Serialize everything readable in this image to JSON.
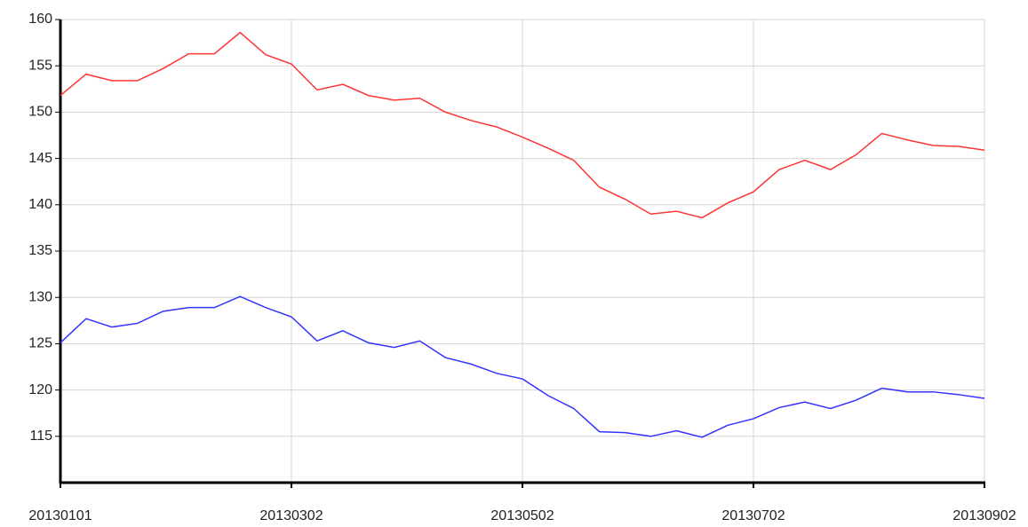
{
  "chart_data": {
    "type": "line",
    "categories": [
      "20130101",
      null,
      null,
      null,
      null,
      null,
      null,
      null,
      null,
      "20130302",
      null,
      null,
      null,
      null,
      null,
      null,
      null,
      null,
      "20130502",
      null,
      null,
      null,
      null,
      null,
      null,
      null,
      null,
      "20130702",
      null,
      null,
      null,
      null,
      null,
      null,
      null,
      null,
      "20130902"
    ],
    "series": [
      {
        "color": "#ff3333",
        "values": [
          151.8,
          154.1,
          153.4,
          153.4,
          154.7,
          156.3,
          156.3,
          158.6,
          156.2,
          155.2,
          152.4,
          153.0,
          151.8,
          151.3,
          151.5,
          150.0,
          149.1,
          148.4,
          147.3,
          146.1,
          144.8,
          141.9,
          140.6,
          139.0,
          139.3,
          138.6,
          140.2,
          141.4,
          143.8,
          144.8,
          143.8,
          145.4,
          147.7,
          147.0,
          146.4,
          146.3,
          145.9
        ]
      },
      {
        "color": "#3333ff",
        "values": [
          125.1,
          127.7,
          126.8,
          127.2,
          128.5,
          128.9,
          128.9,
          130.1,
          128.9,
          127.9,
          125.3,
          126.4,
          125.1,
          124.6,
          125.3,
          123.5,
          122.8,
          121.8,
          121.2,
          119.4,
          118.0,
          115.5,
          115.4,
          115.0,
          115.6,
          114.9,
          116.2,
          116.9,
          118.1,
          118.7,
          118.0,
          118.9,
          120.2,
          119.8,
          119.8,
          119.5,
          119.1
        ]
      }
    ],
    "ylim": [
      110,
      160
    ],
    "yticks": [
      115,
      120,
      125,
      130,
      135,
      140,
      145,
      150,
      155,
      160
    ],
    "grid": true
  }
}
